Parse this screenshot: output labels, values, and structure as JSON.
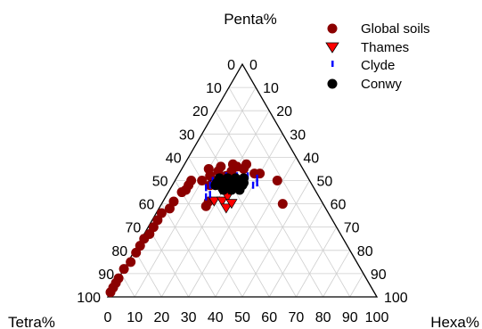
{
  "chart_data": {
    "type": "scatter",
    "subtype": "ternary",
    "axes": {
      "top": {
        "label": "Penta%"
      },
      "left": {
        "label": "Tetra%"
      },
      "right": {
        "label": "Hexa%"
      },
      "range": [
        0,
        100
      ],
      "ticks": [
        "0",
        "10",
        "20",
        "30",
        "40",
        "50",
        "60",
        "70",
        "80",
        "90",
        "100"
      ]
    },
    "grid": true,
    "grid_step": 10,
    "legend_position": "top-right",
    "series": [
      {
        "name": "Global soils",
        "marker": "circle",
        "color": "#8b0000",
        "points": [
          {
            "tetra": 98,
            "penta": 2,
            "hexa": 0
          },
          {
            "tetra": 96,
            "penta": 4,
            "hexa": 0
          },
          {
            "tetra": 94,
            "penta": 6,
            "hexa": 0
          },
          {
            "tetra": 92,
            "penta": 8,
            "hexa": 0
          },
          {
            "tetra": 88,
            "penta": 12,
            "hexa": 0
          },
          {
            "tetra": 84,
            "penta": 15,
            "hexa": 1
          },
          {
            "tetra": 80,
            "penta": 19,
            "hexa": 1
          },
          {
            "tetra": 77,
            "penta": 22,
            "hexa": 1
          },
          {
            "tetra": 74,
            "penta": 25,
            "hexa": 1
          },
          {
            "tetra": 71,
            "penta": 27,
            "hexa": 2
          },
          {
            "tetra": 68,
            "penta": 30,
            "hexa": 2
          },
          {
            "tetra": 65,
            "penta": 33,
            "hexa": 2
          },
          {
            "tetra": 62,
            "penta": 36,
            "hexa": 2
          },
          {
            "tetra": 58,
            "penta": 38,
            "hexa": 4
          },
          {
            "tetra": 55,
            "penta": 41,
            "hexa": 4
          },
          {
            "tetra": 50,
            "penta": 45,
            "hexa": 5
          },
          {
            "tetra": 48,
            "penta": 46,
            "hexa": 6
          },
          {
            "tetra": 46,
            "penta": 48,
            "hexa": 6
          },
          {
            "tetra": 44,
            "penta": 50,
            "hexa": 6
          },
          {
            "tetra": 40,
            "penta": 50,
            "hexa": 10
          },
          {
            "tetra": 38,
            "penta": 48,
            "hexa": 14
          },
          {
            "tetra": 36,
            "penta": 52,
            "hexa": 12
          },
          {
            "tetra": 35,
            "penta": 55,
            "hexa": 10
          },
          {
            "tetra": 34,
            "penta": 50,
            "hexa": 16
          },
          {
            "tetra": 32,
            "penta": 54,
            "hexa": 14
          },
          {
            "tetra": 30,
            "penta": 56,
            "hexa": 14
          },
          {
            "tetra": 30,
            "penta": 52,
            "hexa": 18
          },
          {
            "tetra": 28,
            "penta": 50,
            "hexa": 22
          },
          {
            "tetra": 27,
            "penta": 54,
            "hexa": 19
          },
          {
            "tetra": 25,
            "penta": 57,
            "hexa": 18
          },
          {
            "tetra": 24,
            "penta": 56,
            "hexa": 20
          },
          {
            "tetra": 22,
            "penta": 55,
            "hexa": 23
          },
          {
            "tetra": 20,
            "penta": 57,
            "hexa": 23
          },
          {
            "tetra": 19,
            "penta": 53,
            "hexa": 28
          },
          {
            "tetra": 17,
            "penta": 53,
            "hexa": 30
          },
          {
            "tetra": 12,
            "penta": 50,
            "hexa": 38
          },
          {
            "tetra": 15,
            "penta": 40,
            "hexa": 45
          },
          {
            "tetra": 42,
            "penta": 41,
            "hexa": 17
          },
          {
            "tetra": 44,
            "penta": 39,
            "hexa": 17
          }
        ]
      },
      {
        "name": "Thames",
        "marker": "triangle-down",
        "color": "#ff0000",
        "points": [
          {
            "tetra": 40,
            "penta": 41,
            "hexa": 19
          },
          {
            "tetra": 37,
            "penta": 41,
            "hexa": 22
          },
          {
            "tetra": 34,
            "penta": 43,
            "hexa": 23
          },
          {
            "tetra": 37,
            "penta": 38,
            "hexa": 25
          },
          {
            "tetra": 35,
            "penta": 46,
            "hexa": 19
          },
          {
            "tetra": 36,
            "penta": 48,
            "hexa": 16
          },
          {
            "tetra": 32,
            "penta": 46,
            "hexa": 22
          },
          {
            "tetra": 34,
            "penta": 40,
            "hexa": 26
          }
        ]
      },
      {
        "name": "Clyde",
        "marker": "bar",
        "color": "#0000ff",
        "points": [
          {
            "tetra": 38,
            "penta": 48,
            "hexa": 14
          },
          {
            "tetra": 36,
            "penta": 50,
            "hexa": 14
          },
          {
            "tetra": 40,
            "penta": 47,
            "hexa": 13
          },
          {
            "tetra": 35,
            "penta": 46,
            "hexa": 19
          },
          {
            "tetra": 33,
            "penta": 48,
            "hexa": 19
          },
          {
            "tetra": 32,
            "penta": 50,
            "hexa": 18
          },
          {
            "tetra": 30,
            "penta": 52,
            "hexa": 18
          },
          {
            "tetra": 30,
            "penta": 48,
            "hexa": 22
          },
          {
            "tetra": 28,
            "penta": 50,
            "hexa": 22
          },
          {
            "tetra": 26,
            "penta": 52,
            "hexa": 22
          },
          {
            "tetra": 26,
            "penta": 48,
            "hexa": 26
          },
          {
            "tetra": 24,
            "penta": 50,
            "hexa": 26
          },
          {
            "tetra": 22,
            "penta": 52,
            "hexa": 26
          },
          {
            "tetra": 22,
            "penta": 48,
            "hexa": 30
          },
          {
            "tetra": 20,
            "penta": 49,
            "hexa": 31
          },
          {
            "tetra": 19,
            "penta": 51,
            "hexa": 30
          },
          {
            "tetra": 42,
            "penta": 43,
            "hexa": 15
          },
          {
            "tetra": 40,
            "penta": 44,
            "hexa": 16
          },
          {
            "tetra": 34,
            "penta": 51,
            "hexa": 15
          }
        ]
      },
      {
        "name": "Conwy",
        "marker": "circle",
        "color": "#000000",
        "points": [
          {
            "tetra": 36,
            "penta": 48,
            "hexa": 16
          },
          {
            "tetra": 35,
            "penta": 49,
            "hexa": 16
          },
          {
            "tetra": 34,
            "penta": 48,
            "hexa": 18
          },
          {
            "tetra": 33,
            "penta": 49,
            "hexa": 18
          },
          {
            "tetra": 32,
            "penta": 48,
            "hexa": 20
          },
          {
            "tetra": 31,
            "penta": 49,
            "hexa": 20
          },
          {
            "tetra": 30,
            "penta": 48,
            "hexa": 22
          },
          {
            "tetra": 29,
            "penta": 49,
            "hexa": 22
          },
          {
            "tetra": 28,
            "penta": 48,
            "hexa": 24
          },
          {
            "tetra": 27,
            "penta": 49,
            "hexa": 24
          },
          {
            "tetra": 26,
            "penta": 48,
            "hexa": 26
          },
          {
            "tetra": 25,
            "penta": 49,
            "hexa": 26
          },
          {
            "tetra": 34,
            "penta": 46,
            "hexa": 20
          },
          {
            "tetra": 31,
            "penta": 46,
            "hexa": 23
          },
          {
            "tetra": 28,
            "penta": 46,
            "hexa": 26
          },
          {
            "tetra": 33,
            "penta": 51,
            "hexa": 16
          },
          {
            "tetra": 30,
            "penta": 51,
            "hexa": 19
          },
          {
            "tetra": 27,
            "penta": 51,
            "hexa": 22
          },
          {
            "tetra": 24,
            "penta": 51,
            "hexa": 25
          }
        ]
      }
    ]
  }
}
